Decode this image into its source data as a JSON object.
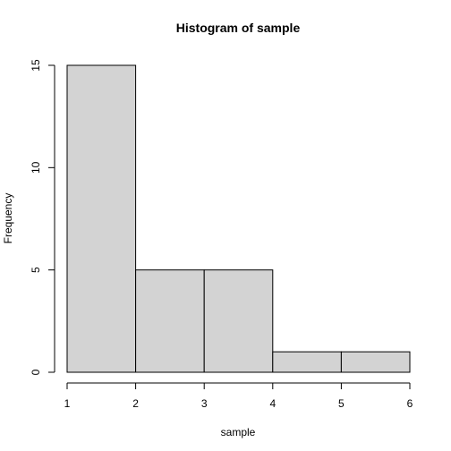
{
  "chart_data": {
    "type": "bar",
    "subtype": "histogram",
    "title": "Histogram of sample",
    "xlabel": "sample",
    "ylabel": "Frequency",
    "bins": [
      {
        "x0": 1,
        "x1": 2,
        "count": 15
      },
      {
        "x0": 2,
        "x1": 3,
        "count": 5
      },
      {
        "x0": 3,
        "x1": 4,
        "count": 5
      },
      {
        "x0": 4,
        "x1": 5,
        "count": 1
      },
      {
        "x0": 5,
        "x1": 6,
        "count": 1
      }
    ],
    "xlim": [
      1,
      6
    ],
    "ylim": [
      0,
      15
    ],
    "x_ticks": [
      1,
      2,
      3,
      4,
      5,
      6
    ],
    "y_ticks": [
      0,
      5,
      10,
      15
    ],
    "grid": false,
    "bar_fill": "#d3d3d3",
    "bar_stroke": "#000000"
  }
}
